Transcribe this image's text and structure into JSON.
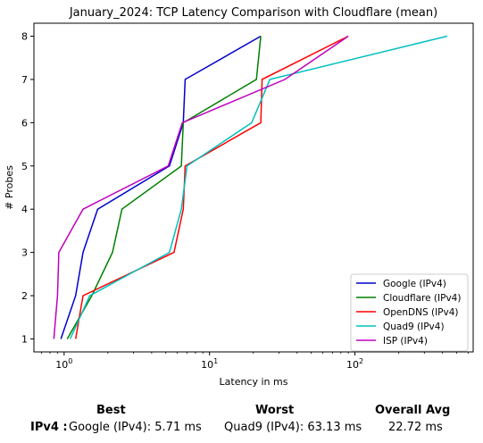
{
  "chart_data": {
    "type": "line",
    "title": "January_2024: TCP Latency Comparison with Cloudflare (mean)",
    "xlabel": "Latency in ms",
    "ylabel": "# Probes",
    "xscale": "log",
    "xlim": [
      0.62,
      650
    ],
    "ylim": [
      0.7,
      8.3
    ],
    "xticks": [
      1,
      10,
      100
    ],
    "xtick_labels": [
      {
        "base": "10",
        "exp": "0"
      },
      {
        "base": "10",
        "exp": "1"
      },
      {
        "base": "10",
        "exp": "2"
      }
    ],
    "yticks": [
      1,
      2,
      3,
      4,
      5,
      6,
      7,
      8
    ],
    "grid": false,
    "legend_position": "lower-right",
    "series": [
      {
        "name": "Google (IPv4)",
        "color": "#0000cc",
        "x": [
          0.95,
          1.2,
          1.35,
          1.7,
          5.3,
          6.6,
          6.8,
          22.5
        ],
        "y": [
          1,
          2,
          3,
          4,
          5,
          6,
          7,
          8
        ]
      },
      {
        "name": "Cloudflare (IPv4)",
        "color": "#008000",
        "x": [
          1.05,
          1.55,
          2.15,
          2.5,
          6.4,
          6.6,
          21,
          22.5
        ],
        "y": [
          1,
          2,
          3,
          4,
          5,
          6,
          7,
          8
        ]
      },
      {
        "name": "OpenDNS (IPv4)",
        "color": "#ff0000",
        "x": [
          1.2,
          1.35,
          5.7,
          6.6,
          6.8,
          22.5,
          23,
          90
        ],
        "y": [
          1,
          2,
          3,
          4,
          5,
          6,
          7,
          8
        ]
      },
      {
        "name": "Quad9 (IPv4)",
        "color": "#00bfbf",
        "x": [
          1.1,
          1.5,
          5.3,
          6.4,
          7.0,
          19.5,
          26,
          430
        ],
        "y": [
          1,
          2,
          3,
          4,
          5,
          6,
          7,
          8
        ]
      },
      {
        "name": "ISP (IPv4)",
        "color": "#bf00bf",
        "x": [
          0.85,
          0.9,
          0.92,
          1.35,
          5.2,
          6.5,
          33,
          90
        ],
        "y": [
          1,
          2,
          3,
          4,
          5,
          6,
          7,
          8
        ]
      }
    ]
  },
  "summary": {
    "best_header": "Best",
    "worst_header": "Worst",
    "avg_header": "Overall Avg",
    "row_label": "IPv4 :",
    "best_value": "Google (IPv4): 5.71 ms",
    "worst_value": "Quad9 (IPv4): 63.13 ms",
    "avg_value": "22.72 ms"
  }
}
